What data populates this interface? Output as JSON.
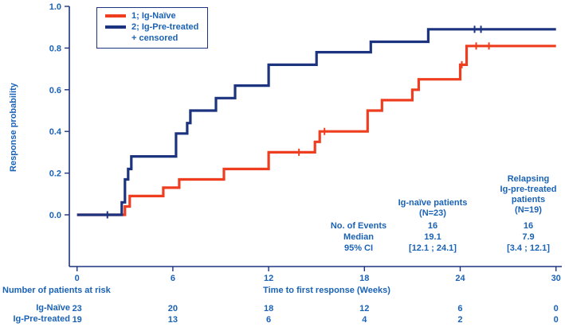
{
  "colors": {
    "navy": "#1c3380",
    "orange": "#ee3e1f",
    "text_blue": "#1a62b5"
  },
  "legend": {
    "items": [
      {
        "label": "1; Ig-Naïve",
        "swatch": "orange"
      },
      {
        "label": "2; Ig-Pre-treated",
        "swatch": "navy"
      },
      {
        "label": "+ censored",
        "swatch": "none"
      }
    ]
  },
  "chart_data": {
    "type": "line",
    "subtype": "kaplan-meier-step",
    "title": "",
    "xlabel": "Time to first response (Weeks)",
    "ylabel": "Response probability",
    "xlim": [
      0,
      30
    ],
    "ylim": [
      0.0,
      1.0
    ],
    "xticks": [
      0,
      6,
      12,
      18,
      24,
      30
    ],
    "yticks": [
      0.0,
      0.2,
      0.4,
      0.6,
      0.8,
      1.0
    ],
    "grid": false,
    "legend_position": "top-left",
    "series": [
      {
        "name": "1; Ig-Naïve",
        "color_key": "orange",
        "step_points": [
          [
            0,
            0
          ],
          [
            3.0,
            0.04
          ],
          [
            3.3,
            0.09
          ],
          [
            5.4,
            0.13
          ],
          [
            6.4,
            0.17
          ],
          [
            9.2,
            0.22
          ],
          [
            12.0,
            0.3
          ],
          [
            14.9,
            0.35
          ],
          [
            15.2,
            0.4
          ],
          [
            18.2,
            0.5
          ],
          [
            19.1,
            0.55
          ],
          [
            21.0,
            0.6
          ],
          [
            21.4,
            0.65
          ],
          [
            24.0,
            0.72
          ],
          [
            24.4,
            0.81
          ]
        ],
        "end_week": 30,
        "final_probability": 0.81,
        "censored": [
          [
            13.9,
            0.3
          ],
          [
            15.5,
            0.4
          ],
          [
            24.1,
            0.72
          ],
          [
            25.0,
            0.81
          ],
          [
            25.8,
            0.81
          ]
        ]
      },
      {
        "name": "2; Ig-Pre-treated",
        "color_key": "navy",
        "step_points": [
          [
            0,
            0
          ],
          [
            2.8,
            0.06
          ],
          [
            3.0,
            0.17
          ],
          [
            3.2,
            0.22
          ],
          [
            3.4,
            0.28
          ],
          [
            6.2,
            0.39
          ],
          [
            6.9,
            0.44
          ],
          [
            7.1,
            0.5
          ],
          [
            8.7,
            0.56
          ],
          [
            9.9,
            0.62
          ],
          [
            12.0,
            0.72
          ],
          [
            15.0,
            0.78
          ],
          [
            18.4,
            0.83
          ],
          [
            22.0,
            0.89
          ]
        ],
        "end_week": 30,
        "final_probability": 0.89,
        "censored": [
          [
            1.9,
            0.0
          ],
          [
            24.9,
            0.89
          ],
          [
            25.3,
            0.89
          ]
        ]
      }
    ]
  },
  "stats_table": {
    "row_labels": [
      "No. of Events",
      "Median",
      "95% CI"
    ],
    "columns": [
      {
        "header": [
          "Ig-naïve patients",
          "(N=23)"
        ],
        "values": [
          "16",
          "19.1",
          "[12.1 ; 24.1]"
        ]
      },
      {
        "header": [
          "Relapsing",
          "Ig-pre-treated",
          "patients",
          "(N=19)"
        ],
        "values": [
          "16",
          "7.9",
          "[3.4 ; 12.1]"
        ]
      }
    ]
  },
  "risk_table": {
    "title": "Number of patients at risk",
    "rows": [
      {
        "label": "Ig-Naïve",
        "values": [
          "23",
          "20",
          "18",
          "12",
          "6",
          "0"
        ]
      },
      {
        "label": "Ig-Pre-treated",
        "values": [
          "19",
          "13",
          "6",
          "4",
          "2",
          "0"
        ]
      }
    ]
  }
}
